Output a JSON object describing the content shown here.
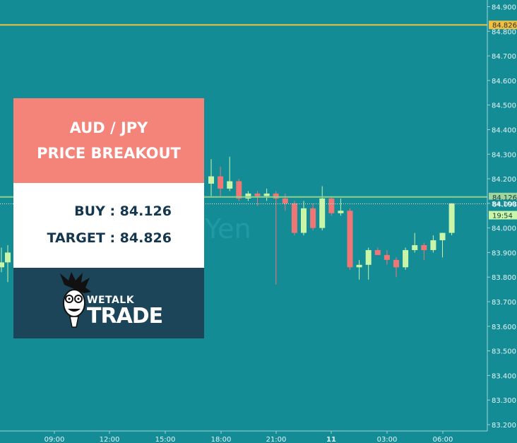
{
  "chart_data": {
    "type": "candlestick",
    "y_ticks": [
      "84.900",
      "84.800",
      "84.700",
      "84.600",
      "84.500",
      "84.400",
      "84.300",
      "84.200",
      "84.100",
      "84.000",
      "83.900",
      "83.800",
      "83.700",
      "83.600",
      "83.500",
      "83.400",
      "83.300",
      "83.200"
    ],
    "x_ticks": [
      "09:00",
      "12:00",
      "15:00",
      "18:00",
      "21:00",
      "11",
      "03:00",
      "06:00"
    ],
    "ylim": [
      83.16,
      84.93
    ],
    "price_labels": {
      "target": "84.826",
      "buy": "84.126",
      "current": "84.098",
      "time": "19:54"
    },
    "watermark": "Yen",
    "candles": [
      {
        "o": 83.84,
        "h": 83.92,
        "l": 83.82,
        "c": 83.86
      },
      {
        "o": 83.86,
        "h": 83.93,
        "l": 83.78,
        "c": 83.9
      },
      {
        "o": 84.18,
        "h": 84.28,
        "l": 84.13,
        "c": 84.21
      },
      {
        "o": 84.21,
        "h": 84.25,
        "l": 84.13,
        "c": 84.16
      },
      {
        "o": 84.16,
        "h": 84.29,
        "l": 84.15,
        "c": 84.19
      },
      {
        "o": 84.19,
        "h": 84.2,
        "l": 84.11,
        "c": 84.12
      },
      {
        "o": 84.12,
        "h": 84.15,
        "l": 84.11,
        "c": 84.14
      },
      {
        "o": 84.14,
        "h": 84.15,
        "l": 84.09,
        "c": 84.13
      },
      {
        "o": 84.13,
        "h": 84.16,
        "l": 84.11,
        "c": 84.14
      },
      {
        "o": 84.14,
        "h": 84.15,
        "l": 83.77,
        "c": 84.12
      },
      {
        "o": 84.12,
        "h": 84.14,
        "l": 84.07,
        "c": 84.1
      },
      {
        "o": 84.1,
        "h": 84.11,
        "l": 83.97,
        "c": 83.98
      },
      {
        "o": 83.98,
        "h": 84.11,
        "l": 83.97,
        "c": 84.08
      },
      {
        "o": 84.08,
        "h": 84.1,
        "l": 83.99,
        "c": 84.0
      },
      {
        "o": 84.0,
        "h": 84.17,
        "l": 83.99,
        "c": 84.12
      },
      {
        "o": 84.12,
        "h": 84.13,
        "l": 84.05,
        "c": 84.06
      },
      {
        "o": 84.06,
        "h": 84.12,
        "l": 84.05,
        "c": 84.07
      },
      {
        "o": 84.07,
        "h": 84.08,
        "l": 83.83,
        "c": 83.84
      },
      {
        "o": 83.84,
        "h": 83.87,
        "l": 83.79,
        "c": 83.85
      },
      {
        "o": 83.85,
        "h": 83.92,
        "l": 83.79,
        "c": 83.91
      },
      {
        "o": 83.91,
        "h": 83.92,
        "l": 83.89,
        "c": 83.89
      },
      {
        "o": 83.89,
        "h": 83.91,
        "l": 83.85,
        "c": 83.87
      },
      {
        "o": 83.87,
        "h": 83.88,
        "l": 83.8,
        "c": 83.84
      },
      {
        "o": 83.84,
        "h": 83.92,
        "l": 83.83,
        "c": 83.91
      },
      {
        "o": 83.91,
        "h": 83.98,
        "l": 83.9,
        "c": 83.93
      },
      {
        "o": 83.93,
        "h": 83.94,
        "l": 83.87,
        "c": 83.91
      },
      {
        "o": 83.91,
        "h": 83.97,
        "l": 83.9,
        "c": 83.95
      },
      {
        "o": 83.95,
        "h": 83.98,
        "l": 83.88,
        "c": 83.98
      },
      {
        "o": 83.98,
        "h": 84.1,
        "l": 83.97,
        "c": 84.1
      }
    ]
  },
  "card": {
    "title_line1": "AUD / JPY",
    "title_line2": "PRICE BREAKOUT",
    "buy": "BUY : 84.126",
    "target": "TARGET : 84.826",
    "logo_line1": "WETALK",
    "logo_line2": "TRADE"
  },
  "colors": {
    "background": "#138c96",
    "bull": "#c8f5a8",
    "bear": "#f07676",
    "target_line": "#f0c040",
    "buy_line": "#8fd08a",
    "axis_text": "#e6f4f5"
  }
}
